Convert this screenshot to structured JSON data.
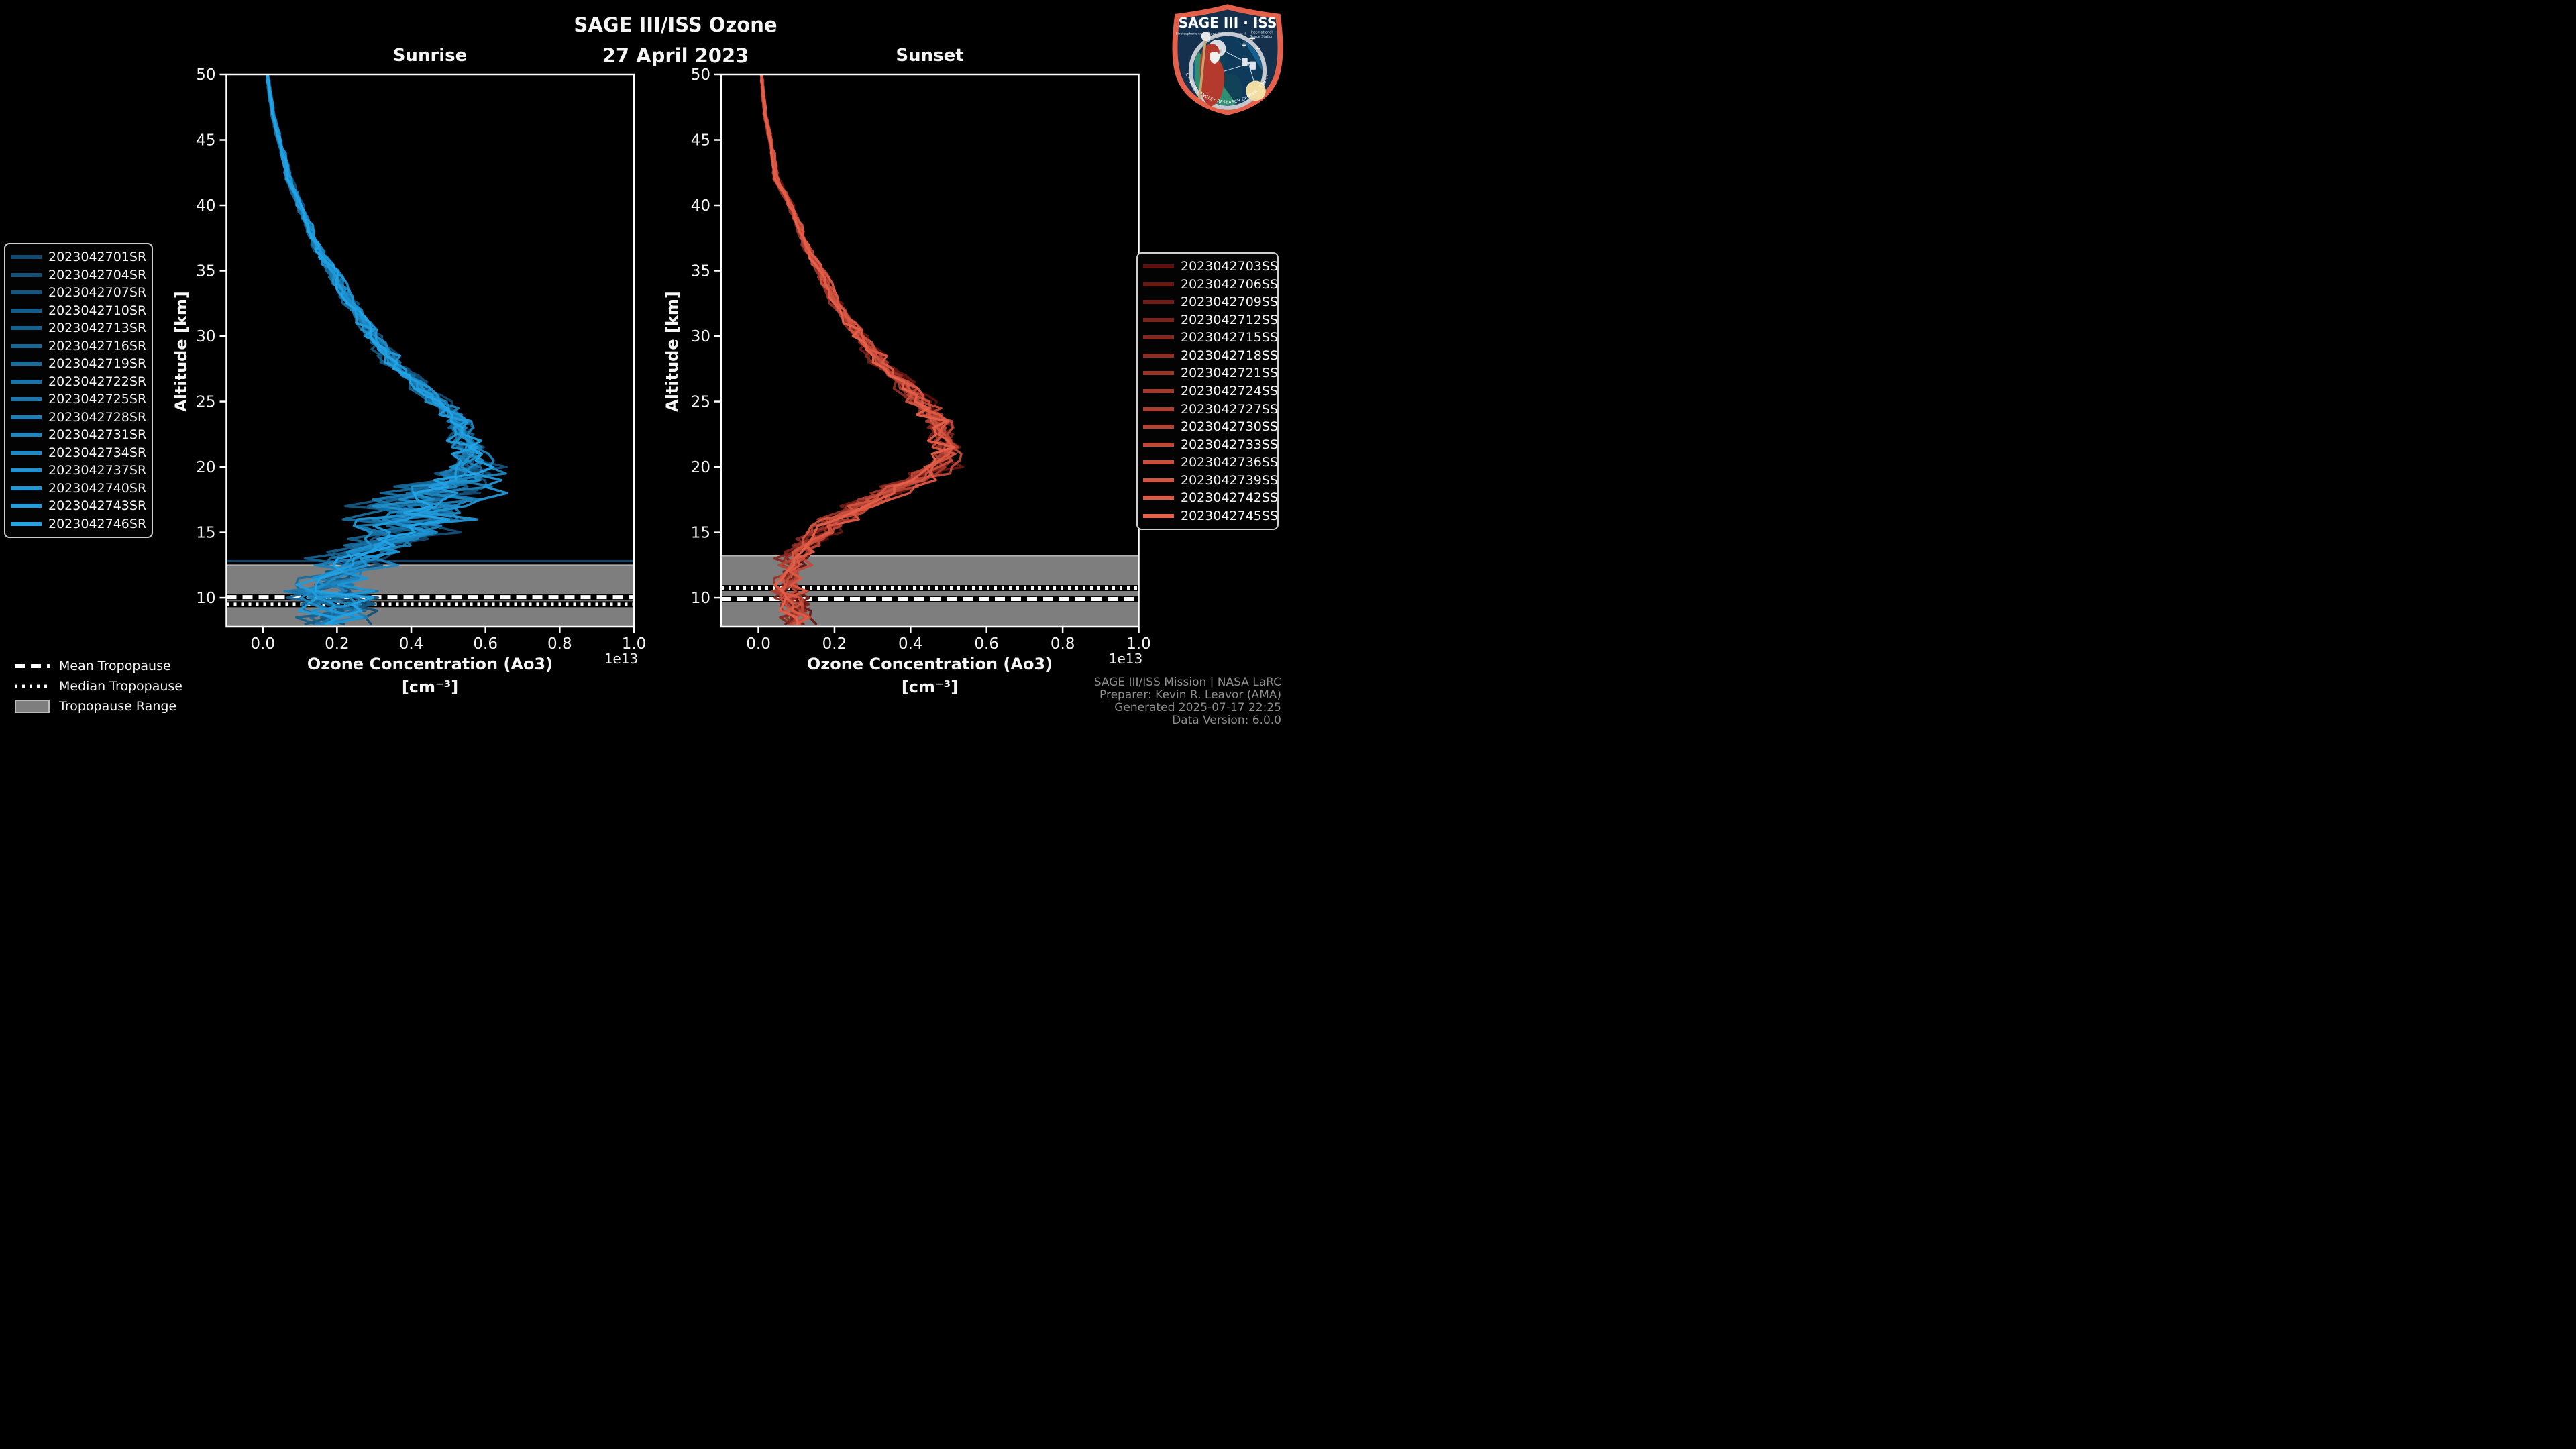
{
  "header": {
    "title": "SAGE III/ISS Ozone",
    "date": "27 April 2023"
  },
  "panels": [
    {
      "title": "Sunrise",
      "legend": [
        "2023042701SR",
        "2023042704SR",
        "2023042707SR",
        "2023042710SR",
        "2023042713SR",
        "2023042716SR",
        "2023042719SR",
        "2023042722SR",
        "2023042725SR",
        "2023042728SR",
        "2023042731SR",
        "2023042734SR",
        "2023042737SR",
        "2023042740SR",
        "2023042743SR",
        "2023042746SR"
      ]
    },
    {
      "title": "Sunset",
      "legend": [
        "2023042703SS",
        "2023042706SS",
        "2023042709SS",
        "2023042712SS",
        "2023042715SS",
        "2023042718SS",
        "2023042721SS",
        "2023042724SS",
        "2023042727SS",
        "2023042730SS",
        "2023042733SS",
        "2023042736SS",
        "2023042739SS",
        "2023042742SS",
        "2023042745SS"
      ]
    }
  ],
  "axes": {
    "xlabel_line1": "Ozone Concentration (Ao3)",
    "xlabel_line2": "[cm⁻³]",
    "ylabel": "Altitude [km]",
    "offset_label": "1e13"
  },
  "tropopause_legend": {
    "mean": "Mean Tropopause",
    "median": "Median Tropopause",
    "range": "Tropopause Range"
  },
  "credits": {
    "line1": "SAGE III/ISS Mission | NASA LaRC",
    "line2": "Preparer: Kevin R. Leavor (AMA)",
    "line3": "Generated 2025-07-17 22:25",
    "line4": "Data Version: 6.0.0"
  },
  "logo": {
    "title": "SAGE III · ISS",
    "subtitle_left": "Stratospheric Aerosol and Gas Experiment III",
    "subtitle_right1": "International",
    "subtitle_right2": "Space Station",
    "rim_text": "BALL · NASA LANGLEY RESEARCH CENTER · TAS-I · ESA",
    "border_color": "#e4604a",
    "field_color": "#14304d"
  },
  "chart_data": {
    "type": "line",
    "title": "SAGE III/ISS Ozone",
    "xlabel": "Ozone Concentration (Ao3) [cm⁻³]",
    "ylabel": "Altitude [km]",
    "xlim": [
      -0.098,
      1.0
    ],
    "ylim": [
      7.8,
      50
    ],
    "x_scale_offset": "1e13",
    "x_tick_values": [
      0.0,
      0.2,
      0.4,
      0.6,
      0.8,
      1.0
    ],
    "x_tick_labels": [
      "0.0",
      "0.2",
      "0.4",
      "0.6",
      "0.8",
      "1.0"
    ],
    "y_tick_values": [
      50,
      45,
      40,
      35,
      30,
      25,
      20,
      15,
      10
    ],
    "grid": false,
    "background": "#000000",
    "panels": [
      {
        "name": "Sunrise",
        "series_count": 16,
        "color_start": "#124a70",
        "color_end": "#22a3e6",
        "profile_alt": [
          50,
          47,
          45,
          42,
          40,
          37,
          35,
          32,
          30,
          28,
          26,
          24,
          22,
          21,
          20,
          19,
          18,
          17,
          16,
          15,
          14,
          13,
          12,
          11,
          10,
          9,
          8
        ],
        "profile_mean": [
          0.012,
          0.028,
          0.045,
          0.072,
          0.1,
          0.145,
          0.19,
          0.25,
          0.3,
          0.355,
          0.435,
          0.52,
          0.555,
          0.565,
          0.57,
          0.55,
          0.5,
          0.46,
          0.43,
          0.4,
          0.32,
          0.26,
          0.22,
          0.2,
          0.22,
          0.21,
          0.2
        ],
        "profile_noise": [
          0.004,
          0.006,
          0.008,
          0.01,
          0.012,
          0.016,
          0.02,
          0.025,
          0.03,
          0.035,
          0.04,
          0.045,
          0.06,
          0.07,
          0.09,
          0.12,
          0.2,
          0.22,
          0.2,
          0.16,
          0.15,
          0.14,
          0.13,
          0.13,
          0.15,
          0.13,
          0.11
        ],
        "flatline_alt": 12.8,
        "tropopause": {
          "mean_alt": 10.05,
          "median_alt": 9.5,
          "range_top_alt": 12.5
        }
      },
      {
        "name": "Sunset",
        "series_count": 15,
        "color_start": "#5e110e",
        "color_end": "#e6604a",
        "profile_alt": [
          50,
          47,
          45,
          42,
          40,
          37,
          35,
          32,
          30,
          28,
          26,
          24,
          22,
          21,
          20,
          19,
          18,
          17,
          16,
          15,
          14,
          13,
          12,
          11,
          10,
          9,
          8
        ],
        "profile_mean": [
          0.008,
          0.018,
          0.032,
          0.048,
          0.085,
          0.125,
          0.165,
          0.215,
          0.27,
          0.325,
          0.4,
          0.465,
          0.5,
          0.5,
          0.48,
          0.42,
          0.35,
          0.28,
          0.22,
          0.17,
          0.13,
          0.1,
          0.085,
          0.085,
          0.1,
          0.1,
          0.11
        ],
        "profile_noise": [
          0.003,
          0.005,
          0.006,
          0.008,
          0.01,
          0.013,
          0.015,
          0.02,
          0.025,
          0.033,
          0.045,
          0.05,
          0.055,
          0.055,
          0.06,
          0.06,
          0.06,
          0.06,
          0.06,
          0.06,
          0.06,
          0.055,
          0.05,
          0.05,
          0.055,
          0.05,
          0.05
        ],
        "flatline_alt": null,
        "tropopause": {
          "mean_alt": 9.9,
          "median_alt": 10.75,
          "range_top_alt": 13.2
        }
      }
    ],
    "tropopause_band_color": "#7e7e7e",
    "tropopause_line_color": "#ffffff"
  }
}
